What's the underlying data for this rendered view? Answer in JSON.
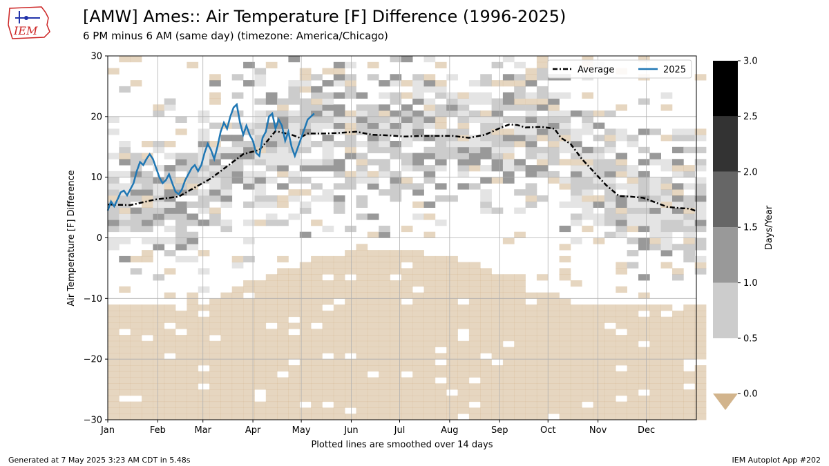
{
  "header": {
    "title": "[AMW] Ames:: Air Temperature [F] Difference (1996-2025)",
    "subtitle": "6 PM minus 6 AM (same day) (timezone: America/Chicago)",
    "logo_text": "IEM"
  },
  "footer": {
    "generated": "Generated at 7 May 2025 3:23 AM CDT in 5.48s",
    "app": "IEM Autoplot App #202"
  },
  "colors": {
    "avg_line": "#000000",
    "year_line": "#1f77b4",
    "zero_fill": "#e8d8c3",
    "grid": "#b0b0b0",
    "logo_red": "#cc2222",
    "logo_blue": "#2233aa"
  },
  "chart_data": {
    "type": "heatmap",
    "xlabel": "Plotted lines are smoothed over 14 days",
    "ylabel": "Air Temperature [F]  Difference",
    "xlim": [
      1,
      366
    ],
    "ylim": [
      -30,
      30
    ],
    "xticks": [
      {
        "label": "Jan",
        "day": 1
      },
      {
        "label": "Feb",
        "day": 32
      },
      {
        "label": "Mar",
        "day": 60
      },
      {
        "label": "Apr",
        "day": 91
      },
      {
        "label": "May",
        "day": 121
      },
      {
        "label": "Jun",
        "day": 152
      },
      {
        "label": "Jul",
        "day": 182
      },
      {
        "label": "Aug",
        "day": 213
      },
      {
        "label": "Sep",
        "day": 244
      },
      {
        "label": "Oct",
        "day": 274
      },
      {
        "label": "Nov",
        "day": 305
      },
      {
        "label": "Dec",
        "day": 335
      }
    ],
    "yticks": [
      -30,
      -20,
      -10,
      0,
      10,
      20,
      30
    ],
    "grid": true,
    "legend_position": "top-right",
    "colorbar": {
      "label": "Days/Year",
      "ticks": [
        0.0,
        0.5,
        1.0,
        1.5,
        2.0,
        2.5,
        3.0
      ],
      "bins": [
        {
          "from": 0.5,
          "to": 1.0,
          "color": "#cccccc"
        },
        {
          "from": 1.0,
          "to": 1.5,
          "color": "#999999"
        },
        {
          "from": 1.5,
          "to": 2.0,
          "color": "#666666"
        },
        {
          "from": 2.0,
          "to": 2.5,
          "color": "#333333"
        },
        {
          "from": 2.5,
          "to": 3.0,
          "color": "#000000"
        }
      ],
      "under_color": "#d2b48c"
    },
    "heatmap_note_levels": {
      "empty": 0,
      "faint": 0.25,
      "light": 0.6,
      "mid": 1.1
    },
    "series": [
      {
        "name": "Average",
        "style": "dashdot",
        "points": [
          [
            1,
            5.5
          ],
          [
            15,
            5.4
          ],
          [
            30,
            6.3
          ],
          [
            45,
            6.8
          ],
          [
            55,
            8.3
          ],
          [
            65,
            9.8
          ],
          [
            75,
            11.8
          ],
          [
            85,
            13.8
          ],
          [
            95,
            14.5
          ],
          [
            100,
            16.0
          ],
          [
            105,
            17.6
          ],
          [
            110,
            17.3
          ],
          [
            115,
            17.0
          ],
          [
            120,
            16.5
          ],
          [
            125,
            17.2
          ],
          [
            135,
            17.2
          ],
          [
            145,
            17.3
          ],
          [
            155,
            17.5
          ],
          [
            165,
            17.0
          ],
          [
            175,
            16.9
          ],
          [
            185,
            16.7
          ],
          [
            195,
            16.8
          ],
          [
            205,
            16.8
          ],
          [
            215,
            16.8
          ],
          [
            225,
            16.5
          ],
          [
            235,
            17.0
          ],
          [
            245,
            18.2
          ],
          [
            250,
            18.7
          ],
          [
            255,
            18.6
          ],
          [
            260,
            18.2
          ],
          [
            270,
            18.3
          ],
          [
            278,
            18.0
          ],
          [
            282,
            16.5
          ],
          [
            288,
            15.5
          ],
          [
            295,
            13.0
          ],
          [
            302,
            11.0
          ],
          [
            310,
            8.7
          ],
          [
            318,
            6.9
          ],
          [
            325,
            6.8
          ],
          [
            333,
            6.6
          ],
          [
            340,
            5.9
          ],
          [
            348,
            5.1
          ],
          [
            356,
            4.9
          ],
          [
            362,
            4.8
          ],
          [
            366,
            4.4
          ]
        ]
      },
      {
        "name": "2025",
        "style": "solid",
        "points": [
          [
            1,
            4.5
          ],
          [
            3,
            6.0
          ],
          [
            5,
            5.2
          ],
          [
            7,
            6.3
          ],
          [
            9,
            7.5
          ],
          [
            11,
            7.8
          ],
          [
            13,
            7.0
          ],
          [
            15,
            8.0
          ],
          [
            17,
            9.0
          ],
          [
            19,
            11.0
          ],
          [
            21,
            12.5
          ],
          [
            23,
            12.0
          ],
          [
            25,
            13.0
          ],
          [
            27,
            13.8
          ],
          [
            29,
            13.0
          ],
          [
            31,
            11.5
          ],
          [
            33,
            10.0
          ],
          [
            35,
            9.0
          ],
          [
            37,
            9.5
          ],
          [
            39,
            10.5
          ],
          [
            41,
            9.0
          ],
          [
            43,
            7.6
          ],
          [
            45,
            7.2
          ],
          [
            47,
            8.0
          ],
          [
            49,
            9.5
          ],
          [
            51,
            10.5
          ],
          [
            53,
            11.5
          ],
          [
            55,
            12.0
          ],
          [
            57,
            11.0
          ],
          [
            59,
            12.0
          ],
          [
            61,
            14.0
          ],
          [
            63,
            15.5
          ],
          [
            65,
            14.5
          ],
          [
            67,
            13.0
          ],
          [
            69,
            15.0
          ],
          [
            71,
            17.5
          ],
          [
            73,
            19.0
          ],
          [
            75,
            18.0
          ],
          [
            77,
            20.0
          ],
          [
            79,
            21.5
          ],
          [
            81,
            22.0
          ],
          [
            83,
            19.0
          ],
          [
            85,
            17.0
          ],
          [
            87,
            18.5
          ],
          [
            89,
            17.0
          ],
          [
            91,
            16.0
          ],
          [
            93,
            14.0
          ],
          [
            95,
            13.5
          ],
          [
            97,
            16.5
          ],
          [
            99,
            17.5
          ],
          [
            101,
            20.0
          ],
          [
            103,
            20.5
          ],
          [
            105,
            18.0
          ],
          [
            107,
            19.5
          ],
          [
            109,
            18.5
          ],
          [
            111,
            16.0
          ],
          [
            113,
            17.5
          ],
          [
            115,
            15.0
          ],
          [
            117,
            13.5
          ],
          [
            119,
            15.0
          ],
          [
            121,
            16.5
          ],
          [
            123,
            18.0
          ],
          [
            125,
            19.5
          ],
          [
            127,
            20.0
          ],
          [
            129,
            20.5
          ]
        ]
      }
    ]
  }
}
